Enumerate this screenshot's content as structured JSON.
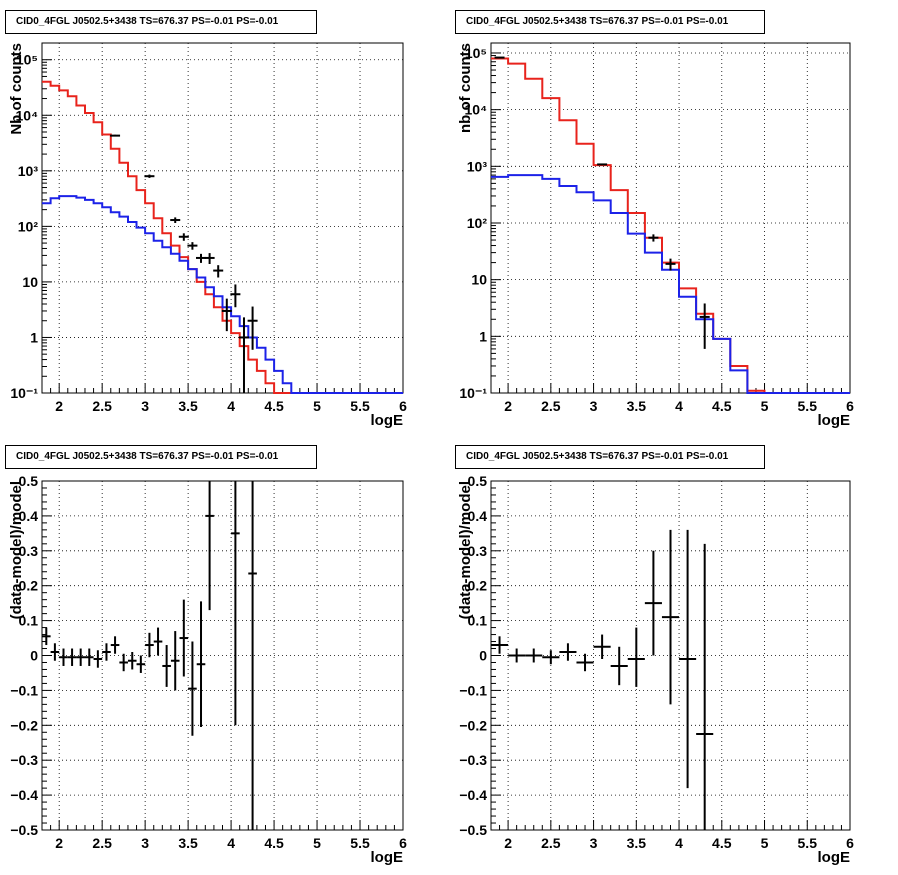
{
  "chart_data": [
    {
      "type": "line",
      "title": "CID0_4FGL J0502.5+3438 TS=676.37 PS=-0.01 PS=-0.01",
      "xlabel": "logE",
      "ylabel": "Nb of counts",
      "xlim": [
        1.8,
        6.0
      ],
      "ylim": [
        0.1,
        200000
      ],
      "ylog": true,
      "grid": true,
      "xticks": [
        2,
        2.5,
        3,
        3.5,
        4,
        4.5,
        5,
        5.5,
        6
      ],
      "xtick_labels": [
        "2",
        "2.5",
        "3",
        "3.5",
        "4",
        "4.5",
        "5",
        "5.5",
        "6"
      ],
      "yticks": [
        0.1,
        1,
        10,
        100,
        1000,
        10000,
        100000
      ],
      "ytick_labels": [
        "10⁻¹",
        "1",
        "10",
        "10²",
        "10³",
        "10⁴",
        "10⁵"
      ],
      "bin_edges": [
        1.8,
        1.9,
        2.0,
        2.1,
        2.2,
        2.3,
        2.4,
        2.5,
        2.6,
        2.7,
        2.8,
        2.9,
        3.0,
        3.1,
        3.2,
        3.3,
        3.4,
        3.5,
        3.6,
        3.7,
        3.8,
        3.9,
        4.0,
        4.1,
        4.2,
        4.3,
        4.4,
        4.5,
        4.6,
        4.7,
        4.8,
        4.9,
        5.0,
        5.1,
        5.2,
        5.3,
        5.4,
        5.5,
        5.6,
        5.7,
        5.8,
        5.9,
        6.0
      ],
      "series": [
        {
          "color": "#e8231c",
          "values": [
            40000,
            34000,
            28000,
            22000,
            15000,
            11000,
            7500,
            4500,
            2500,
            1400,
            800,
            450,
            260,
            140,
            75,
            45,
            28,
            17,
            10,
            6,
            3.5,
            2,
            1.2,
            0.7,
            0.4,
            0.25,
            0.15,
            0.1,
            0.1,
            0.1,
            0.1,
            0.1,
            0.1,
            0.1,
            0.1,
            0.1,
            0.1,
            0.1,
            0.1,
            0.1,
            0.1,
            0.1
          ]
        },
        {
          "color": "#1c22e8",
          "values": [
            260,
            320,
            350,
            350,
            330,
            300,
            260,
            220,
            180,
            150,
            120,
            95,
            75,
            55,
            42,
            32,
            24,
            17,
            12,
            8,
            5.5,
            3.5,
            2.4,
            1.6,
            1.0,
            0.65,
            0.4,
            0.25,
            0.15,
            0.1,
            0.1,
            0.1,
            0.1,
            0.1,
            0.1,
            0.1,
            0.1,
            0.1,
            0.1,
            0.1,
            0.1,
            0.1
          ]
        }
      ],
      "data_points": {
        "color": "#000000",
        "points": [
          {
            "x": 2.65,
            "y": 4300,
            "ylo": 4150,
            "yhi": 4450
          },
          {
            "x": 3.05,
            "y": 800,
            "ylo": 745,
            "yhi": 855
          },
          {
            "x": 3.35,
            "y": 130,
            "ylo": 115,
            "yhi": 145
          },
          {
            "x": 3.45,
            "y": 65,
            "ylo": 55,
            "yhi": 75
          },
          {
            "x": 3.55,
            "y": 45,
            "ylo": 38,
            "yhi": 52
          },
          {
            "x": 3.65,
            "y": 27,
            "ylo": 22,
            "yhi": 32
          },
          {
            "x": 3.75,
            "y": 27,
            "ylo": 21,
            "yhi": 33
          },
          {
            "x": 3.85,
            "y": 16,
            "ylo": 12,
            "yhi": 20
          },
          {
            "x": 3.95,
            "y": 3,
            "ylo": 1.3,
            "yhi": 5
          },
          {
            "x": 4.05,
            "y": 6,
            "ylo": 3.5,
            "yhi": 9
          },
          {
            "x": 4.15,
            "y": 1,
            "ylo": 0.1,
            "yhi": 2.3
          },
          {
            "x": 4.25,
            "y": 2,
            "ylo": 0.6,
            "yhi": 3.6
          }
        ]
      }
    },
    {
      "type": "line",
      "title": "CID0_4FGL J0502.5+3438 TS=676.37 PS=-0.01 PS=-0.01",
      "xlabel": "logE",
      "ylabel": "nb of counts",
      "xlim": [
        1.8,
        6.0
      ],
      "ylim": [
        0.1,
        150000
      ],
      "ylog": true,
      "grid": true,
      "xticks": [
        2,
        2.5,
        3,
        3.5,
        4,
        4.5,
        5,
        5.5,
        6
      ],
      "xtick_labels": [
        "2",
        "2.5",
        "3",
        "3.5",
        "4",
        "4.5",
        "5",
        "5.5",
        "6"
      ],
      "yticks": [
        0.1,
        1,
        10,
        100,
        1000,
        10000,
        100000
      ],
      "ytick_labels": [
        "10⁻¹",
        "1",
        "10",
        "10²",
        "10³",
        "10⁴",
        "10⁵"
      ],
      "bin_edges": [
        1.8,
        2.0,
        2.2,
        2.4,
        2.6,
        2.8,
        3.0,
        3.2,
        3.4,
        3.6,
        3.8,
        4.0,
        4.2,
        4.4,
        4.6,
        4.8,
        5.0,
        5.2,
        5.4,
        5.6,
        5.8,
        6.0
      ],
      "series": [
        {
          "color": "#e8231c",
          "values": [
            80000,
            65000,
            35000,
            16000,
            6500,
            2500,
            1050,
            380,
            150,
            55,
            20,
            7,
            2.5,
            0.9,
            0.3,
            0.11,
            0.1,
            0.1,
            0.1,
            0.1,
            0.1
          ]
        },
        {
          "color": "#1c22e8",
          "values": [
            650,
            700,
            700,
            600,
            450,
            350,
            250,
            150,
            65,
            30,
            15,
            5,
            2,
            0.9,
            0.25,
            0.1,
            0.1,
            0.1,
            0.1,
            0.1,
            0.1
          ]
        }
      ],
      "data_points": {
        "color": "#000000",
        "points": [
          {
            "x": 1.9,
            "y": 83000,
            "ylo": 82400,
            "yhi": 83600
          },
          {
            "x": 3.1,
            "y": 1080,
            "ylo": 1045,
            "yhi": 1115
          },
          {
            "x": 3.7,
            "y": 55,
            "ylo": 47,
            "yhi": 63
          },
          {
            "x": 3.9,
            "y": 19,
            "ylo": 14.5,
            "yhi": 23.5
          },
          {
            "x": 4.3,
            "y": 2.2,
            "ylo": 0.6,
            "yhi": 3.8
          }
        ]
      }
    },
    {
      "type": "scatter",
      "title": "CID0_4FGL J0502.5+3438 TS=676.37 PS=-0.01 PS=-0.01",
      "xlabel": "logE",
      "ylabel": "(data-model)/model",
      "xlim": [
        1.8,
        6.0
      ],
      "ylim": [
        -0.5,
        0.5
      ],
      "grid": true,
      "xticks": [
        2,
        2.5,
        3,
        3.5,
        4,
        4.5,
        5,
        5.5,
        6
      ],
      "xtick_labels": [
        "2",
        "2.5",
        "3",
        "3.5",
        "4",
        "4.5",
        "5",
        "5.5",
        "6"
      ],
      "yticks": [
        -0.5,
        -0.4,
        -0.3,
        -0.2,
        -0.1,
        0,
        0.1,
        0.2,
        0.3,
        0.4,
        0.5
      ],
      "ytick_labels": [
        "−0.5",
        "−0.4",
        "−0.3",
        "−0.2",
        "−0.1",
        "0",
        "0.1",
        "0.2",
        "0.3",
        "0.4",
        "0.5"
      ],
      "points": [
        {
          "x": 1.85,
          "y": 0.055,
          "ylo": 0.03,
          "yhi": 0.08,
          "dx": 0.05
        },
        {
          "x": 1.95,
          "y": 0.01,
          "ylo": -0.015,
          "yhi": 0.035,
          "dx": 0.05
        },
        {
          "x": 2.05,
          "y": -0.005,
          "ylo": -0.03,
          "yhi": 0.02,
          "dx": 0.05
        },
        {
          "x": 2.15,
          "y": -0.005,
          "ylo": -0.03,
          "yhi": 0.02,
          "dx": 0.05
        },
        {
          "x": 2.25,
          "y": -0.005,
          "ylo": -0.03,
          "yhi": 0.02,
          "dx": 0.05
        },
        {
          "x": 2.35,
          "y": -0.005,
          "ylo": -0.03,
          "yhi": 0.02,
          "dx": 0.05
        },
        {
          "x": 2.45,
          "y": -0.01,
          "ylo": -0.035,
          "yhi": 0.015,
          "dx": 0.05
        },
        {
          "x": 2.55,
          "y": 0.01,
          "ylo": -0.015,
          "yhi": 0.035,
          "dx": 0.05
        },
        {
          "x": 2.65,
          "y": 0.03,
          "ylo": 0.005,
          "yhi": 0.055,
          "dx": 0.05
        },
        {
          "x": 2.75,
          "y": -0.02,
          "ylo": -0.045,
          "yhi": 0.005,
          "dx": 0.05
        },
        {
          "x": 2.85,
          "y": -0.015,
          "ylo": -0.04,
          "yhi": 0.01,
          "dx": 0.05
        },
        {
          "x": 2.95,
          "y": -0.025,
          "ylo": -0.05,
          "yhi": 0.0,
          "dx": 0.05
        },
        {
          "x": 3.05,
          "y": 0.03,
          "ylo": -0.005,
          "yhi": 0.065,
          "dx": 0.05
        },
        {
          "x": 3.15,
          "y": 0.04,
          "ylo": 0.0,
          "yhi": 0.08,
          "dx": 0.05
        },
        {
          "x": 3.25,
          "y": -0.03,
          "ylo": -0.09,
          "yhi": 0.03,
          "dx": 0.05
        },
        {
          "x": 3.35,
          "y": -0.015,
          "ylo": -0.1,
          "yhi": 0.07,
          "dx": 0.05
        },
        {
          "x": 3.45,
          "y": 0.05,
          "ylo": -0.06,
          "yhi": 0.16,
          "dx": 0.05
        },
        {
          "x": 3.55,
          "y": -0.095,
          "ylo": -0.23,
          "yhi": 0.04,
          "dx": 0.05
        },
        {
          "x": 3.65,
          "y": -0.025,
          "ylo": -0.205,
          "yhi": 0.155,
          "dx": 0.05
        },
        {
          "x": 3.75,
          "y": 0.4,
          "ylo": 0.13,
          "yhi": 0.5,
          "dx": 0.05
        },
        {
          "x": 4.05,
          "y": 0.35,
          "ylo": -0.2,
          "yhi": 0.5,
          "dx": 0.05
        },
        {
          "x": 4.25,
          "y": 0.235,
          "ylo": -0.5,
          "yhi": 0.5,
          "dx": 0.05
        }
      ]
    },
    {
      "type": "scatter",
      "title": "CID0_4FGL J0502.5+3438 TS=676.37 PS=-0.01 PS=-0.01",
      "xlabel": "logE",
      "ylabel": "(data-model)/model",
      "xlim": [
        1.8,
        6.0
      ],
      "ylim": [
        -0.5,
        0.5
      ],
      "grid": true,
      "xticks": [
        2,
        2.5,
        3,
        3.5,
        4,
        4.5,
        5,
        5.5,
        6
      ],
      "xtick_labels": [
        "2",
        "2.5",
        "3",
        "3.5",
        "4",
        "4.5",
        "5",
        "5.5",
        "6"
      ],
      "yticks": [
        -0.5,
        -0.4,
        -0.3,
        -0.2,
        -0.1,
        0,
        0.1,
        0.2,
        0.3,
        0.4,
        0.5
      ],
      "ytick_labels": [
        "−0.5",
        "−0.4",
        "−0.3",
        "−0.2",
        "−0.1",
        "0",
        "0.1",
        "0.2",
        "0.3",
        "0.4",
        "0.5"
      ],
      "points": [
        {
          "x": 1.9,
          "y": 0.03,
          "ylo": 0.005,
          "yhi": 0.055,
          "dx": 0.1
        },
        {
          "x": 2.1,
          "y": 0.0,
          "ylo": -0.02,
          "yhi": 0.02,
          "dx": 0.1
        },
        {
          "x": 2.3,
          "y": 0.0,
          "ylo": -0.02,
          "yhi": 0.02,
          "dx": 0.1
        },
        {
          "x": 2.5,
          "y": -0.005,
          "ylo": -0.025,
          "yhi": 0.015,
          "dx": 0.1
        },
        {
          "x": 2.7,
          "y": 0.01,
          "ylo": -0.015,
          "yhi": 0.035,
          "dx": 0.1
        },
        {
          "x": 2.9,
          "y": -0.02,
          "ylo": -0.045,
          "yhi": 0.005,
          "dx": 0.1
        },
        {
          "x": 3.1,
          "y": 0.025,
          "ylo": -0.01,
          "yhi": 0.06,
          "dx": 0.1
        },
        {
          "x": 3.3,
          "y": -0.03,
          "ylo": -0.085,
          "yhi": 0.025,
          "dx": 0.1
        },
        {
          "x": 3.5,
          "y": -0.01,
          "ylo": -0.09,
          "yhi": 0.08,
          "dx": 0.1
        },
        {
          "x": 3.7,
          "y": 0.15,
          "ylo": 0.0,
          "yhi": 0.3,
          "dx": 0.1
        },
        {
          "x": 3.9,
          "y": 0.11,
          "ylo": -0.14,
          "yhi": 0.36,
          "dx": 0.1
        },
        {
          "x": 4.1,
          "y": -0.01,
          "ylo": -0.38,
          "yhi": 0.36,
          "dx": 0.1
        },
        {
          "x": 4.3,
          "y": -0.225,
          "ylo": -0.5,
          "yhi": 0.32,
          "dx": 0.1
        }
      ]
    }
  ]
}
